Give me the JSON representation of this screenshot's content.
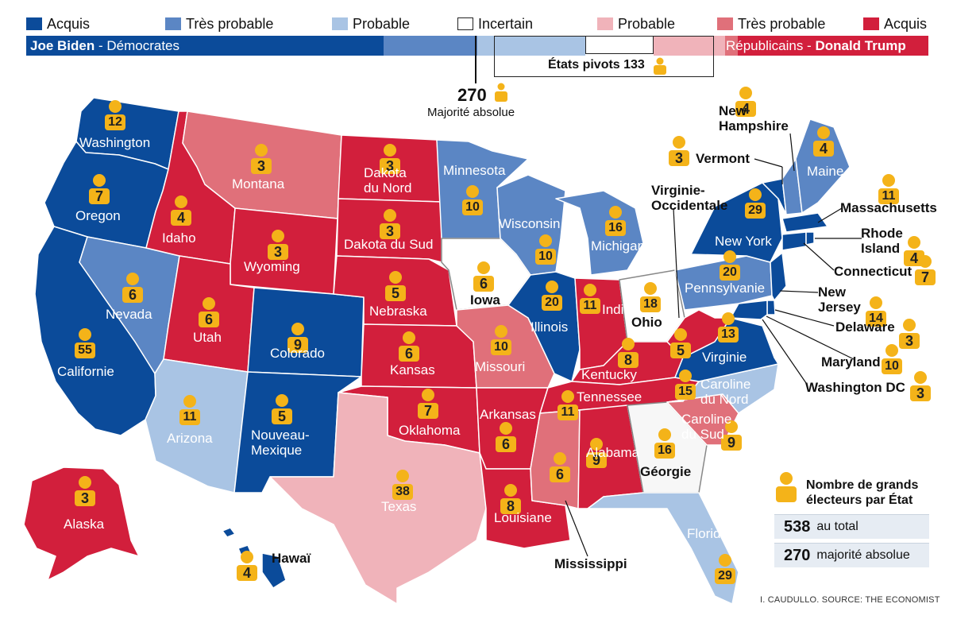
{
  "legend": {
    "items": [
      {
        "label": "Acquis",
        "color": "#0b4b9a"
      },
      {
        "label": "Très probable",
        "color": "#5b86c4"
      },
      {
        "label": "Probable",
        "color": "#a9c4e4"
      },
      {
        "label": "Incertain",
        "color": "#ffffff"
      },
      {
        "label": "Probable",
        "color": "#f0b3ba"
      },
      {
        "label": "Très probable",
        "color": "#e0707a"
      },
      {
        "label": "Acquis",
        "color": "#d21f3c"
      }
    ]
  },
  "bar": {
    "dem_name": "Joe Biden",
    "dem_party": " - Démocrates",
    "rep_party": "Républicains - ",
    "rep_name": "Donald Trump",
    "pivot_label": "États pivots 133",
    "majority_number": "270",
    "majority_label": "Majorité absolue"
  },
  "states": [
    {
      "name": "Washington",
      "ev": "12"
    },
    {
      "name": "Oregon",
      "ev": "7"
    },
    {
      "name": "Californie",
      "ev": "55"
    },
    {
      "name": "Nevada",
      "ev": "6"
    },
    {
      "name": "Idaho",
      "ev": "4"
    },
    {
      "name": "Montana",
      "ev": "3"
    },
    {
      "name": "Wyoming",
      "ev": "3"
    },
    {
      "name": "Utah",
      "ev": "6"
    },
    {
      "name": "Arizona",
      "ev": "11"
    },
    {
      "name": "Colorado",
      "ev": "9"
    },
    {
      "name": "Nouveau-\nMexique",
      "ev": "5"
    },
    {
      "name": "Dakota\ndu Nord",
      "ev": "3"
    },
    {
      "name": "Dakota du Sud",
      "ev": "3"
    },
    {
      "name": "Nebraska",
      "ev": "5"
    },
    {
      "name": "Kansas",
      "ev": "6"
    },
    {
      "name": "Oklahoma",
      "ev": "7"
    },
    {
      "name": "Texas",
      "ev": "38"
    },
    {
      "name": "Minnesota",
      "ev": "10"
    },
    {
      "name": "Iowa",
      "ev": "6"
    },
    {
      "name": "Missouri",
      "ev": "10"
    },
    {
      "name": "Arkansas",
      "ev": "6"
    },
    {
      "name": "Louisiane",
      "ev": "8"
    },
    {
      "name": "Wisconsin",
      "ev": "10"
    },
    {
      "name": "Illinois",
      "ev": "20"
    },
    {
      "name": "Michigan",
      "ev": "16"
    },
    {
      "name": "Indiana",
      "ev": "11"
    },
    {
      "name": "Ohio",
      "ev": "18"
    },
    {
      "name": "Kentucky",
      "ev": "8"
    },
    {
      "name": "Tennessee",
      "ev": "11"
    },
    {
      "name": "Mississippi",
      "ev": "6"
    },
    {
      "name": "Alabama",
      "ev": "9"
    },
    {
      "name": "Géorgie",
      "ev": "16"
    },
    {
      "name": "Floride",
      "ev": "29"
    },
    {
      "name": "Caroline\ndu Sud",
      "ev": "9"
    },
    {
      "name": "Caroline\ndu Nord",
      "ev": "15"
    },
    {
      "name": "Virginie",
      "ev": "13"
    },
    {
      "name": "Virginie-\nOccidentale",
      "ev": "5"
    },
    {
      "name": "Pennsylvanie",
      "ev": "20"
    },
    {
      "name": "New York",
      "ev": "29"
    },
    {
      "name": "Vermont",
      "ev": "3"
    },
    {
      "name": "New\nHampshire",
      "ev": "4"
    },
    {
      "name": "Maine",
      "ev": "4"
    },
    {
      "name": "Massachusetts",
      "ev": "11"
    },
    {
      "name": "Rhode\nIsland",
      "ev": "4"
    },
    {
      "name": "Connecticut",
      "ev": "7"
    },
    {
      "name": "New\nJersey",
      "ev": "14"
    },
    {
      "name": "Delaware",
      "ev": "3"
    },
    {
      "name": "Maryland",
      "ev": "10"
    },
    {
      "name": "Washington DC",
      "ev": "3"
    },
    {
      "name": "Alaska",
      "ev": "3"
    },
    {
      "name": "Hawaï",
      "ev": "4"
    }
  ],
  "key": {
    "title": "Nombre de grands\nélecteurs par État",
    "total_num": "538",
    "total_label": "au total",
    "majority_num": "270",
    "majority_label": "majorité absolue"
  },
  "credit": "I. CAUDULLO. SOURCE: THE ECONOMIST",
  "icons": {
    "elector": "person-icon"
  }
}
